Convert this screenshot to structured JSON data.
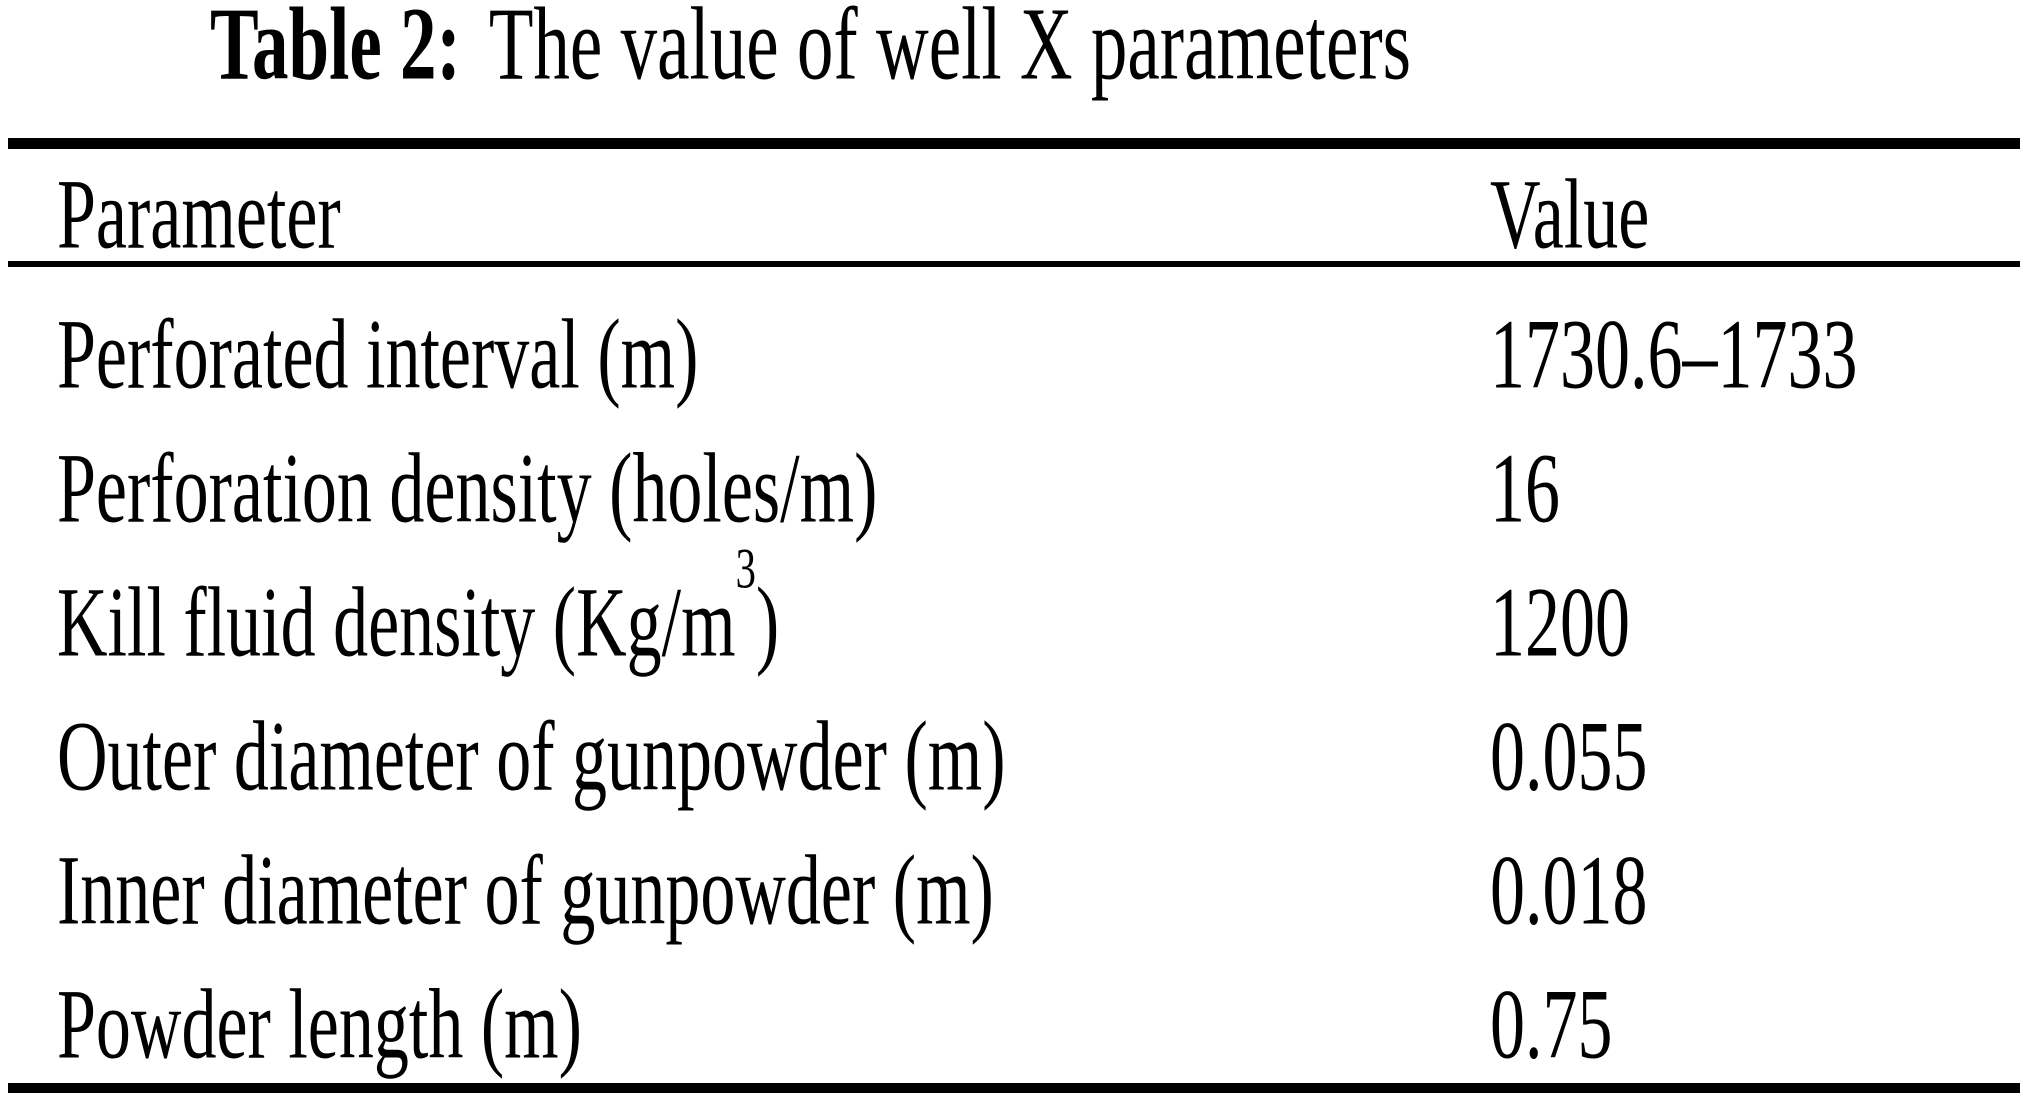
{
  "caption": {
    "label": "Table 2:",
    "text": "The value of well X parameters"
  },
  "table": {
    "headers": {
      "parameter": "Parameter",
      "value": "Value"
    },
    "rows": [
      {
        "parameter": "Perforated interval (m)",
        "parameter_sup": "",
        "parameter_suffix": "",
        "value": "1730.6–1733"
      },
      {
        "parameter": "Perforation density (holes/m)",
        "parameter_sup": "",
        "parameter_suffix": "",
        "value": "16"
      },
      {
        "parameter": "Kill fluid density (Kg/m",
        "parameter_sup": "3",
        "parameter_suffix": ")",
        "value": "1200"
      },
      {
        "parameter": "Outer diameter of gunpowder (m)",
        "parameter_sup": "",
        "parameter_suffix": "",
        "value": "0.055"
      },
      {
        "parameter": "Inner diameter of gunpowder (m)",
        "parameter_sup": "",
        "parameter_suffix": "",
        "value": "0.018"
      },
      {
        "parameter": "Powder length (m)",
        "parameter_sup": "",
        "parameter_suffix": "",
        "value": "0.75"
      }
    ]
  },
  "colors": {
    "text": "#000000",
    "background": "#ffffff",
    "rule": "#000000"
  }
}
